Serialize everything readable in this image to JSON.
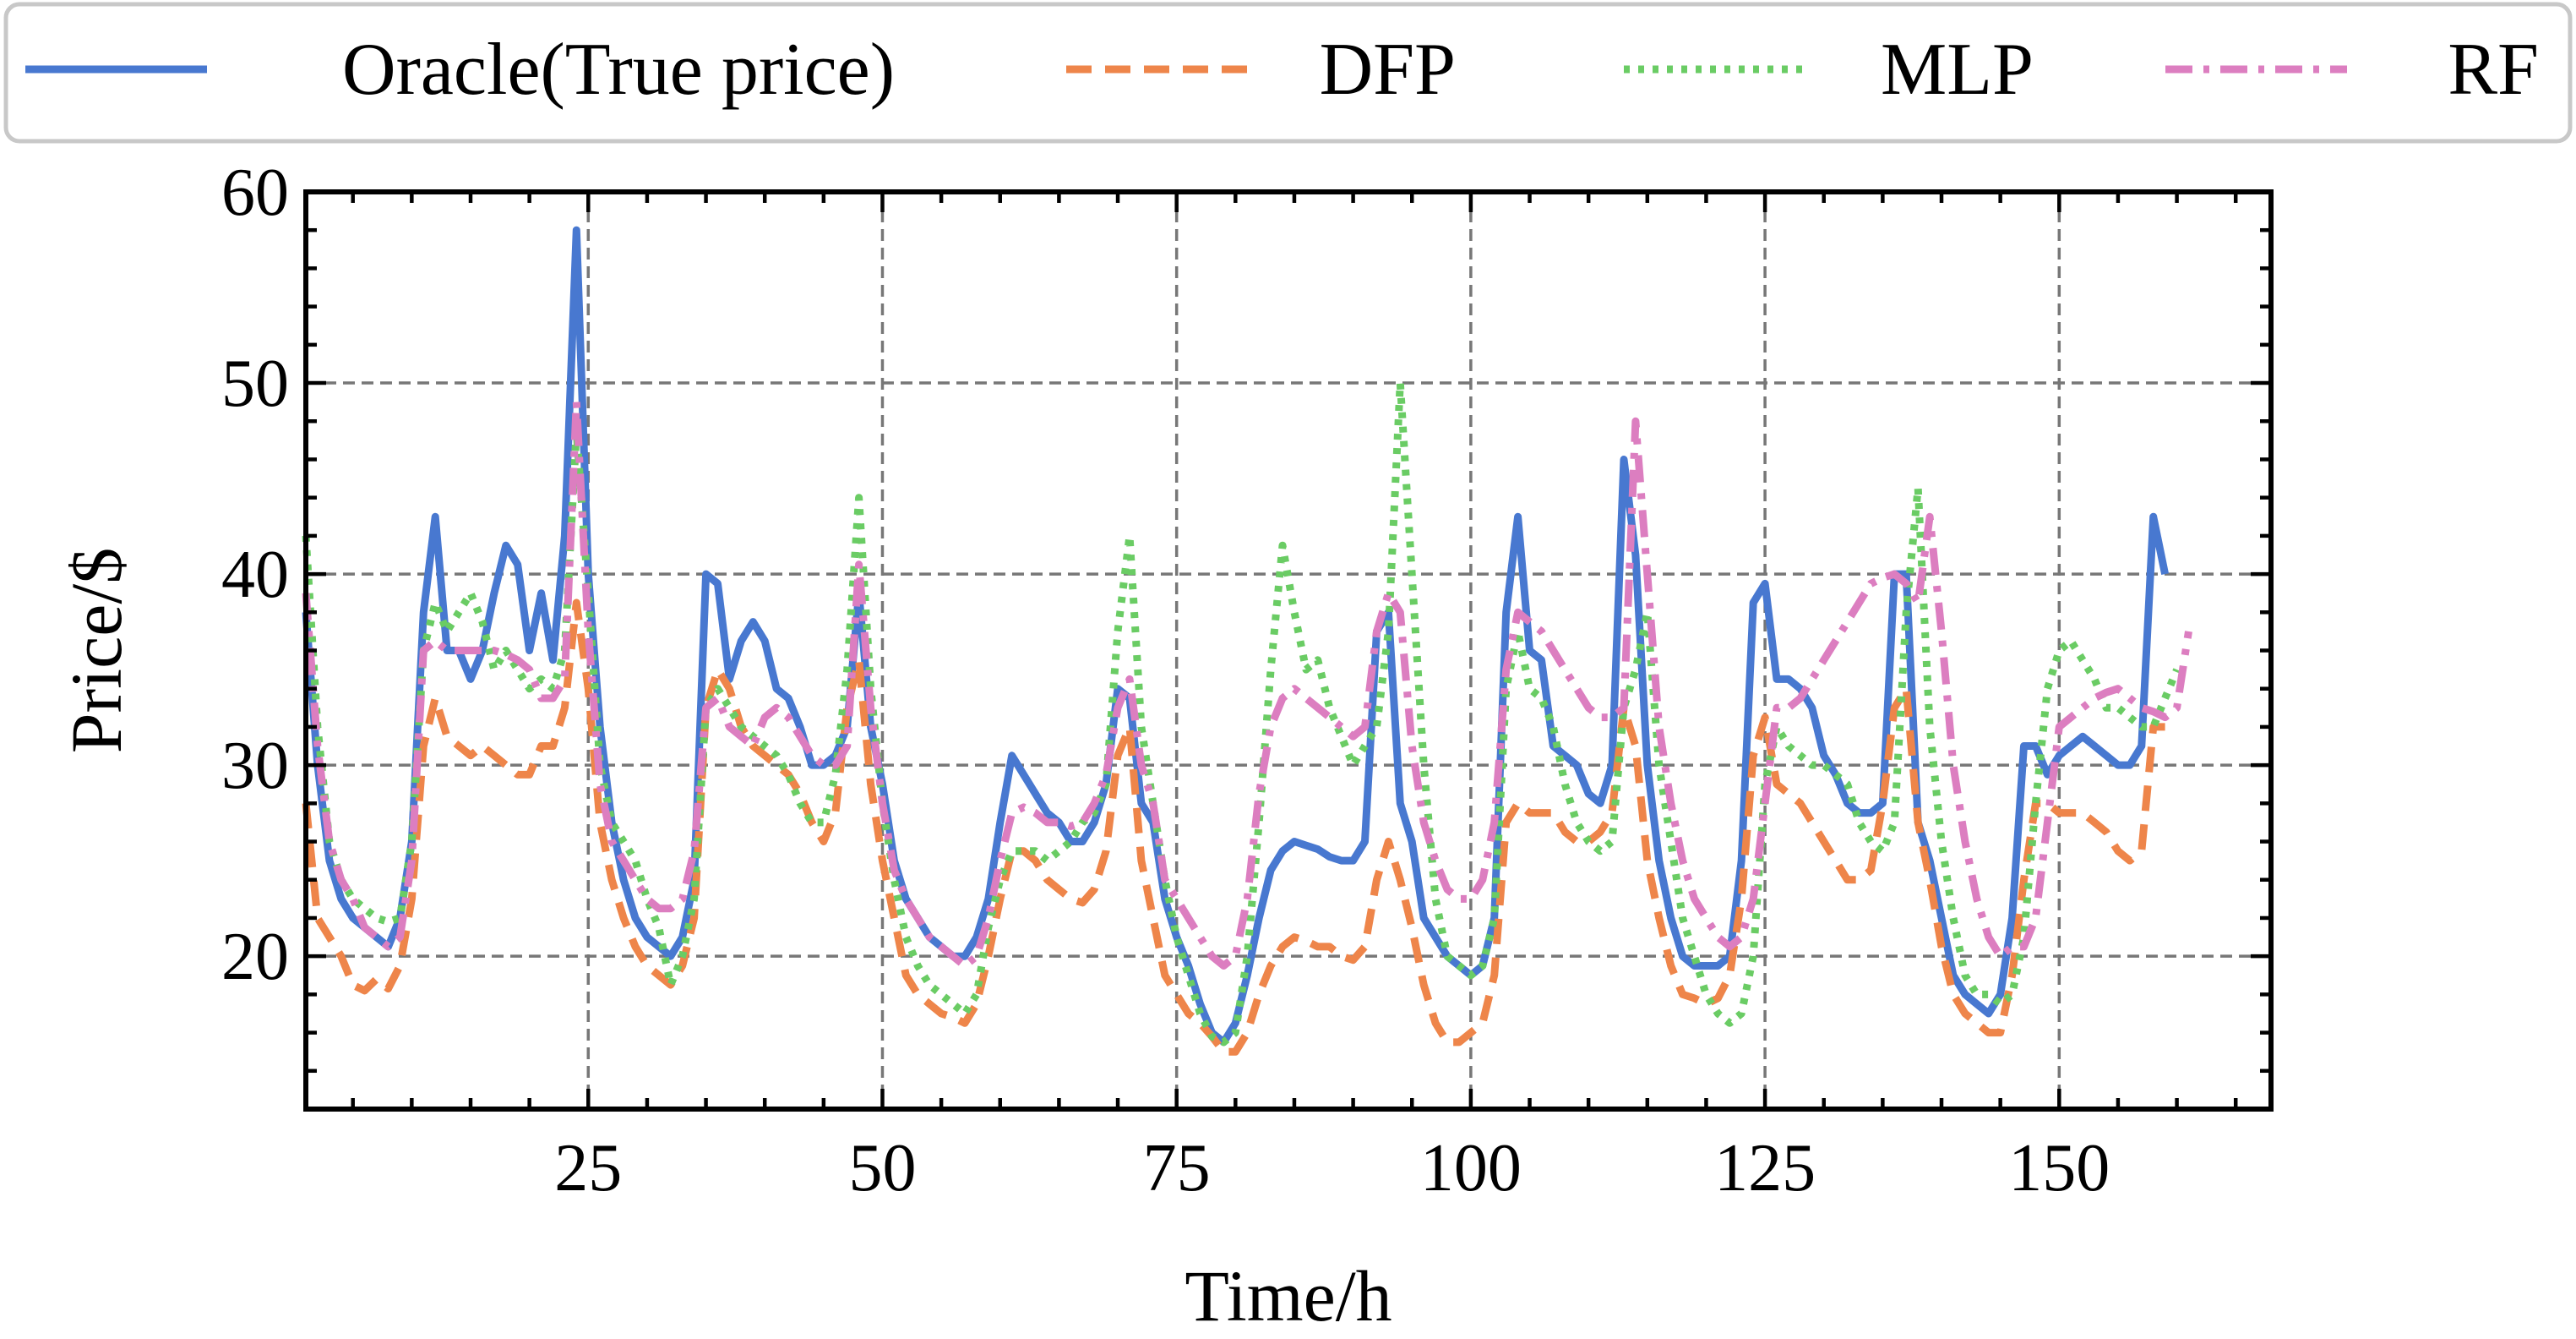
{
  "chart_data": {
    "type": "line",
    "title": "",
    "xlabel": "Time/h",
    "ylabel": "Price/$",
    "xlim": [
      1,
      168
    ],
    "ylim": [
      12,
      60
    ],
    "xticks": [
      25,
      50,
      75,
      100,
      125,
      150
    ],
    "yticks": [
      20,
      30,
      40,
      50,
      60
    ],
    "grid": true,
    "legend_position": "top, outside plot, single row",
    "x_start": 1,
    "series": [
      {
        "name": "Oracle(True price)",
        "color": "#4878d0",
        "dash": "solid",
        "values": [
          38,
          30,
          25,
          23,
          22,
          21.5,
          21,
          20.5,
          22,
          26,
          38,
          43,
          36,
          36,
          34.5,
          36,
          39,
          41.5,
          40.5,
          36,
          39,
          35.5,
          42,
          58,
          40,
          32,
          27,
          24,
          22,
          21,
          20.5,
          20,
          21,
          24,
          40,
          39.5,
          34.5,
          36.5,
          37.5,
          36.5,
          34,
          33.5,
          32,
          30,
          30,
          30.5,
          32,
          39,
          32,
          29,
          25,
          23,
          22,
          21,
          20.5,
          20,
          20,
          21,
          23,
          27,
          30.5,
          29.5,
          28.5,
          27.5,
          27,
          26,
          26,
          27,
          29,
          34,
          33.5,
          28,
          27,
          23,
          21,
          19.5,
          17.5,
          16,
          15.5,
          16.5,
          19,
          22,
          24.5,
          25.5,
          26,
          25.8,
          25.6,
          25.2,
          25,
          25,
          26,
          37,
          38,
          28,
          26,
          22,
          21,
          20,
          19.5,
          19,
          19.5,
          22,
          38,
          43,
          36,
          35.5,
          31,
          30.5,
          30,
          28.5,
          28,
          30,
          46,
          41,
          30,
          25,
          22,
          20,
          19.5,
          19.5,
          19.5,
          20,
          25,
          38.5,
          39.5,
          34.5,
          34.5,
          34,
          33,
          30.5,
          29.5,
          28,
          27.5,
          27.5,
          28,
          40,
          40,
          27,
          25,
          22,
          19,
          18,
          17.5,
          17,
          18,
          22,
          31,
          31,
          29.5,
          30.5,
          31,
          31.5,
          31,
          30.5,
          30,
          30,
          31,
          43,
          40
        ]
      },
      {
        "name": "DFP",
        "color": "#ee854a",
        "dash": "dashed",
        "values": [
          28,
          22,
          21,
          20,
          18.5,
          18.2,
          18.8,
          18.3,
          19.5,
          23,
          31,
          33.5,
          31.5,
          31,
          30.5,
          31,
          30.5,
          30,
          29.5,
          29.5,
          31,
          31,
          33,
          38.5,
          34,
          27,
          24,
          22,
          20.5,
          19.5,
          19,
          18.5,
          19.5,
          22,
          33,
          35,
          34,
          32,
          31,
          30.5,
          30,
          29.5,
          28.5,
          27,
          26,
          27.5,
          33,
          35.5,
          29,
          25,
          22,
          19,
          18,
          17.5,
          17,
          16.8,
          16.5,
          17.5,
          20,
          23,
          25.5,
          25.5,
          25,
          24,
          23.5,
          23,
          22.8,
          23.5,
          25.5,
          30.5,
          32,
          25,
          22,
          19,
          18,
          17,
          16.5,
          15.8,
          15,
          15,
          16,
          18,
          19.5,
          20.5,
          21,
          20.8,
          20.5,
          20.5,
          20,
          19.8,
          20.5,
          24,
          26,
          24,
          21.5,
          18.5,
          16.5,
          15.5,
          15.5,
          16,
          16.5,
          19,
          27,
          28,
          27.5,
          27.5,
          27.5,
          26.5,
          26,
          26,
          26.5,
          27.5,
          33,
          31,
          25,
          22,
          19.5,
          18,
          17.8,
          17.5,
          17.8,
          19,
          23,
          30.5,
          32.5,
          29,
          28.5,
          28,
          27,
          26,
          25,
          24,
          24,
          24.5,
          28,
          33,
          34,
          27,
          24,
          20.5,
          18,
          17,
          16.5,
          16,
          16,
          19,
          24,
          28,
          28,
          27.5,
          27.5,
          27.5,
          27,
          26.5,
          25.5,
          25,
          25.5,
          32,
          32
        ]
      },
      {
        "name": "MLP",
        "color": "#6acc64",
        "dash": "dotted",
        "values": [
          42,
          32,
          26,
          24,
          23,
          22.5,
          22,
          21.8,
          22,
          26,
          36,
          38.5,
          37,
          38,
          39,
          37.5,
          35,
          36,
          35,
          34,
          34.5,
          34,
          36,
          47.5,
          39,
          30,
          27,
          26,
          25,
          23,
          21.5,
          18.5,
          20,
          23,
          33,
          34,
          33,
          32,
          31.5,
          31,
          30.5,
          29.5,
          28,
          27,
          27,
          29.5,
          35,
          44,
          34,
          28,
          24,
          21,
          19.5,
          18.5,
          18,
          17.5,
          17,
          18,
          21.5,
          24,
          25.5,
          25.5,
          25.5,
          25,
          25.5,
          26,
          27,
          27.5,
          29,
          37,
          42,
          32,
          28,
          24,
          21,
          19,
          17,
          15.8,
          15.5,
          16,
          20,
          27,
          35,
          41.5,
          38,
          35,
          35.5,
          33,
          31.5,
          30,
          31,
          32,
          37,
          50,
          40,
          30,
          23,
          20,
          19.5,
          19,
          19.5,
          22,
          34,
          37,
          34,
          33.5,
          32,
          29,
          27,
          26,
          25.5,
          26,
          33,
          35,
          38,
          30,
          26,
          22,
          20,
          18,
          17,
          16.5,
          17,
          20,
          29,
          32,
          31,
          30.5,
          30,
          30,
          29.5,
          29,
          27,
          26,
          25.5,
          27,
          38,
          44.5,
          32,
          26,
          22,
          19,
          18,
          18,
          17.5,
          18,
          21,
          28,
          34,
          36,
          36.5,
          35.5,
          34.5,
          33,
          33,
          32.5,
          32,
          32,
          33.5,
          35
        ]
      },
      {
        "name": "RF",
        "color": "#dc7ec0",
        "dash": "dashdot",
        "values": [
          39,
          31,
          26,
          24,
          23,
          21.5,
          21,
          20.5,
          21,
          25,
          36,
          36.5,
          36,
          36,
          36,
          36,
          36,
          35.8,
          35.5,
          35,
          33.5,
          33.5,
          34.5,
          49,
          37,
          29,
          26,
          25,
          24,
          23,
          22.5,
          22.5,
          23,
          25.5,
          33,
          33.5,
          32,
          31.5,
          31,
          32.5,
          33,
          32.5,
          31.5,
          30.5,
          30,
          30,
          31,
          40.5,
          33,
          28,
          24.5,
          23,
          22,
          21,
          20.5,
          20,
          19.5,
          20,
          22,
          25,
          27.5,
          27.8,
          27.5,
          27,
          27,
          26.8,
          27,
          28,
          29.5,
          33,
          34.5,
          30,
          28,
          24,
          23,
          22,
          21,
          20,
          19.5,
          20,
          23,
          28.5,
          32,
          33.5,
          34,
          33.5,
          33,
          32.5,
          32,
          31.5,
          32,
          37,
          39,
          38,
          31,
          27,
          25,
          23.5,
          23,
          23,
          24,
          27,
          35,
          38,
          37.5,
          37,
          36,
          35,
          34,
          33,
          32.5,
          32.5,
          33,
          48,
          40,
          32,
          28,
          25,
          23,
          22,
          21,
          20.5,
          21,
          23,
          28,
          33,
          33,
          33.5,
          34.5,
          35.5,
          36.5,
          37.5,
          38.5,
          39.5,
          39.8,
          40,
          39.5,
          38.5,
          43,
          37,
          30,
          26,
          23,
          21,
          20,
          20.5,
          20.5,
          22,
          27,
          32,
          32.5,
          33,
          33.5,
          33.8,
          34,
          33.5,
          33,
          32.8,
          32.5,
          33,
          37
        ]
      }
    ]
  }
}
